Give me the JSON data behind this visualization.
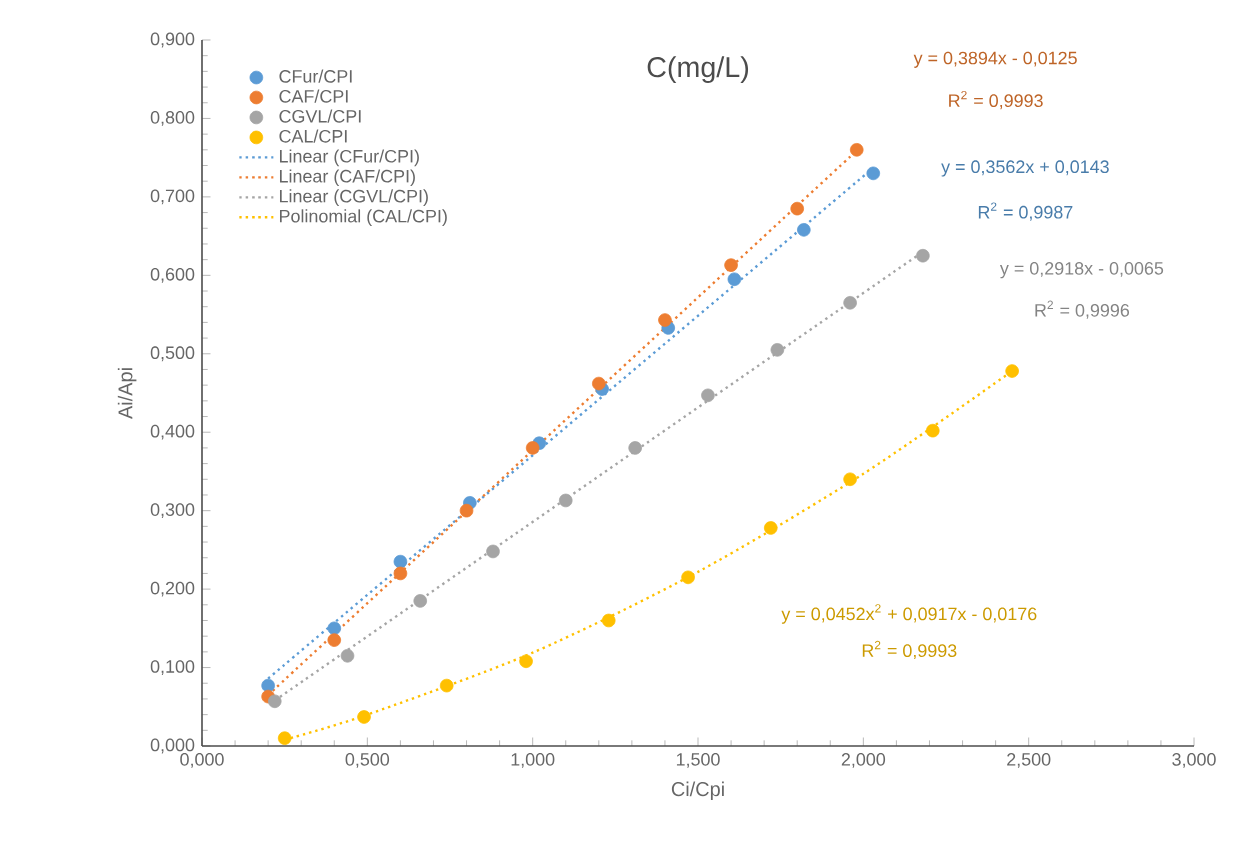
{
  "chart_data": {
    "type": "scatter",
    "title": "C(mg/L)",
    "xlabel": "Ci/Cpi",
    "ylabel": "Ai/Api",
    "grid": false,
    "legend": "top left",
    "xlim": [
      0,
      3
    ],
    "ylim": [
      0,
      0.9
    ],
    "xticks": [
      {
        "value": 0,
        "label": "0,000"
      },
      {
        "value": 0.5,
        "label": "0,500"
      },
      {
        "value": 1,
        "label": "1,000"
      },
      {
        "value": 1.5,
        "label": "1,500"
      },
      {
        "value": 2,
        "label": "2,000"
      },
      {
        "value": 2.5,
        "label": "2,500"
      },
      {
        "value": 3,
        "label": "3,000"
      }
    ],
    "yticks": [
      {
        "value": 0,
        "label": "0,000"
      },
      {
        "value": 0.1,
        "label": "0,100"
      },
      {
        "value": 0.2,
        "label": "0,200"
      },
      {
        "value": 0.3,
        "label": "0,300"
      },
      {
        "value": 0.4,
        "label": "0,400"
      },
      {
        "value": 0.5,
        "label": "0,500"
      },
      {
        "value": 0.6,
        "label": "0,600"
      },
      {
        "value": 0.7,
        "label": "0,700"
      },
      {
        "value": 0.8,
        "label": "0,800"
      },
      {
        "value": 0.9,
        "label": "0,900"
      }
    ],
    "series": [
      {
        "name": "CFur/CPI",
        "marker": "circle",
        "color": "#5b9bd5",
        "x": [
          0.2,
          0.4,
          0.6,
          0.81,
          1.02,
          1.21,
          1.41,
          1.61,
          1.82,
          2.03
        ],
        "values": [
          0.077,
          0.15,
          0.235,
          0.31,
          0.386,
          0.455,
          0.533,
          0.595,
          0.658,
          0.73
        ]
      },
      {
        "name": "CAF/CPI",
        "marker": "circle",
        "color": "#ed7d31",
        "x": [
          0.2,
          0.4,
          0.6,
          0.8,
          1.0,
          1.2,
          1.4,
          1.6,
          1.8,
          1.98
        ],
        "values": [
          0.063,
          0.135,
          0.22,
          0.3,
          0.38,
          0.462,
          0.543,
          0.613,
          0.685,
          0.76
        ]
      },
      {
        "name": "CGVL/CPI",
        "marker": "circle",
        "color": "#a5a5a5",
        "x": [
          0.22,
          0.44,
          0.66,
          0.88,
          1.1,
          1.31,
          1.53,
          1.74,
          1.96,
          2.18
        ],
        "values": [
          0.057,
          0.115,
          0.185,
          0.248,
          0.313,
          0.38,
          0.447,
          0.505,
          0.565,
          0.625
        ]
      },
      {
        "name": "CAL/CPI",
        "marker": "circle",
        "color": "#ffc000",
        "x": [
          0.25,
          0.49,
          0.74,
          0.98,
          1.23,
          1.47,
          1.72,
          1.96,
          2.21,
          2.45
        ],
        "values": [
          0.01,
          0.037,
          0.077,
          0.108,
          0.16,
          0.215,
          0.278,
          0.34,
          0.402,
          0.478
        ]
      },
      {
        "name": "Linear (CFur/CPI)",
        "type": "line",
        "marker": "none",
        "line_style": "dotted",
        "color": "#5b9bd5",
        "x": [
          0.2,
          2.03
        ],
        "values": [
          0.086,
          0.737
        ]
      },
      {
        "name": "Linear (CAF/CPI)",
        "type": "line",
        "marker": "none",
        "line_style": "dotted",
        "color": "#ed7d31",
        "x": [
          0.2,
          1.98
        ],
        "values": [
          0.065,
          0.759
        ]
      },
      {
        "name": "Linear (CGVL/CPI)",
        "type": "line",
        "marker": "none",
        "line_style": "dotted",
        "color": "#a5a5a5",
        "x": [
          0.22,
          2.18
        ],
        "values": [
          0.058,
          0.63
        ]
      },
      {
        "name": "Polinomial (CAL/CPI)",
        "type": "line",
        "marker": "none",
        "line_style": "dotted",
        "color": "#ffc000",
        "x": [
          0.25,
          0.5,
          1.0,
          1.5,
          2.0,
          2.45
        ],
        "values": [
          0.008,
          0.04,
          0.119,
          0.222,
          0.347,
          0.478
        ]
      }
    ],
    "annotations": [
      "y = 0,3894x - 0,0125",
      "R$^{2}$ = 0,9993",
      "y = 0,3562x + 0,0143",
      "R$^{2}$ = 0,9987",
      "y = 0,2918x - 0,0065",
      "R$^{2}$ = 0,9996",
      "y = 0,0452x$^{2}$ + 0,0917x - 0,0176",
      "R$^{2}$ = 0,9993"
    ]
  }
}
